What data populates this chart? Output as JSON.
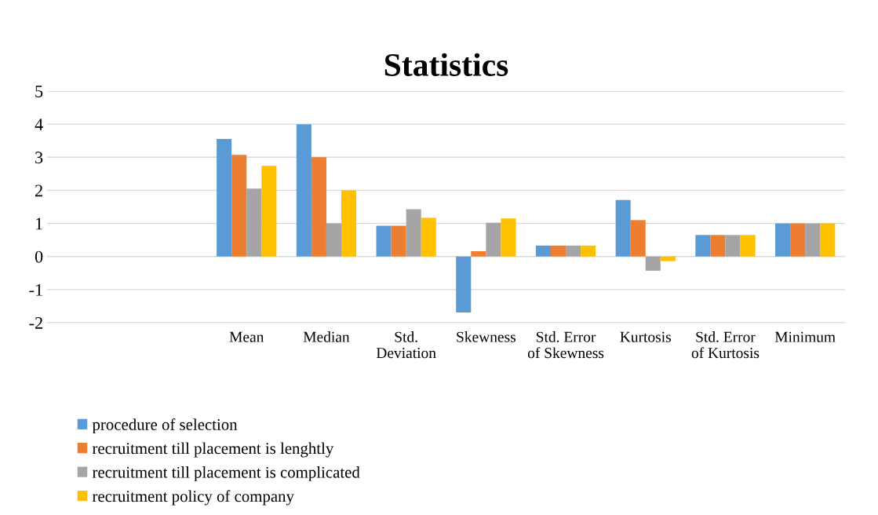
{
  "chart_data": {
    "type": "bar",
    "title": "Statistics",
    "categories": [
      null,
      null,
      "Mean",
      "Median",
      "Std. Deviation",
      "Skewness",
      "Std. Error of Skewness",
      "Kurtosis",
      "Std. Error of Kurtosis",
      "Minimum"
    ],
    "series": [
      {
        "name": "procedure of selection",
        "color": "#5b9bd5",
        "values": [
          null,
          null,
          3.55,
          4,
          0.93,
          -1.69,
          0.33,
          1.71,
          0.65,
          1
        ]
      },
      {
        "name": "recruitment till placement is lenghtly",
        "color": "#ed7d31",
        "values": [
          null,
          null,
          3.07,
          3,
          0.93,
          0.16,
          0.33,
          1.1,
          0.65,
          1
        ]
      },
      {
        "name": "recruitment till placement is complicated",
        "color": "#a5a5a5",
        "values": [
          null,
          null,
          2.05,
          1,
          1.43,
          1.02,
          0.33,
          -0.43,
          0.65,
          1
        ]
      },
      {
        "name": "recruitment policy of company",
        "color": "#ffc000",
        "values": [
          null,
          null,
          2.74,
          2,
          1.17,
          1.15,
          0.33,
          -0.14,
          0.65,
          1
        ]
      }
    ],
    "ylim": [
      -2,
      5
    ],
    "yticks": [
      -2,
      -1,
      0,
      1,
      2,
      3,
      4,
      5
    ],
    "grid": "y",
    "legend": "bottom left"
  }
}
